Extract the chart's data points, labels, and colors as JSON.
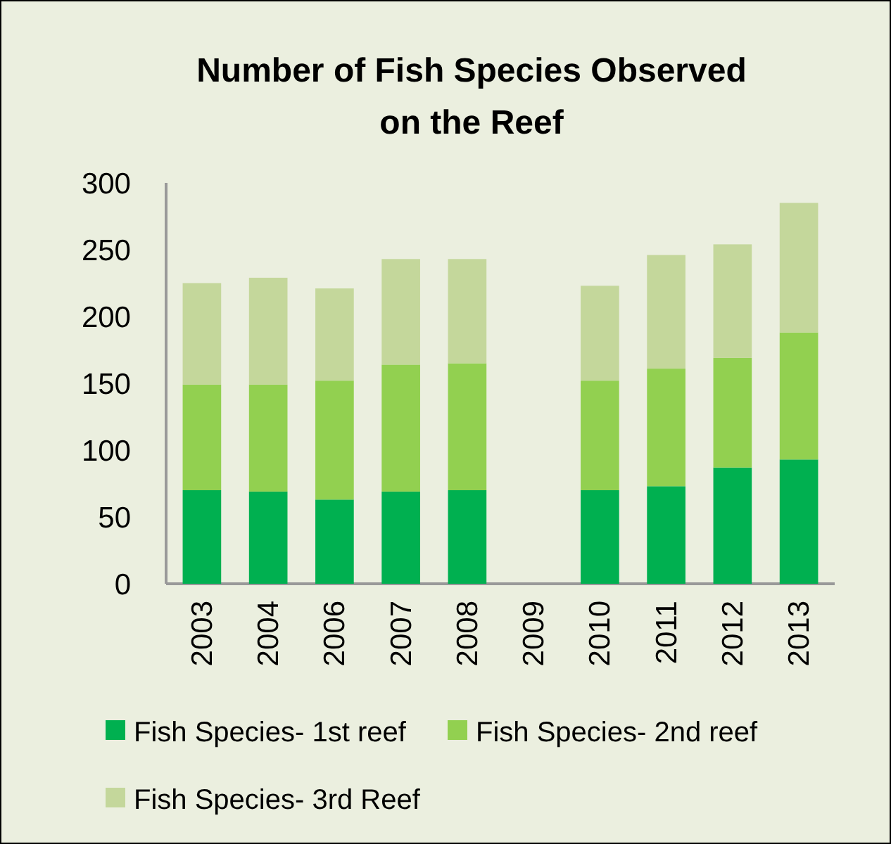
{
  "chart_data": {
    "type": "bar",
    "title": "Number of Fish Species Observed on the Reef",
    "categories": [
      "2003",
      "2004",
      "2006",
      "2007",
      "2008",
      "2009",
      "2010",
      "2011",
      "2012",
      "2013"
    ],
    "stacked": true,
    "series": [
      {
        "name": "Fish Species- 1st reef",
        "color": "#00b050",
        "values": [
          70,
          69,
          63,
          69,
          70,
          0,
          70,
          73,
          87,
          93
        ]
      },
      {
        "name": "Fish Species- 2nd reef",
        "color": "#92d050",
        "values": [
          79,
          80,
          89,
          95,
          95,
          0,
          82,
          88,
          82,
          95
        ]
      },
      {
        "name": "Fish Species- 3rd Reef",
        "color": "#c4d79b",
        "values": [
          76,
          80,
          69,
          79,
          78,
          0,
          71,
          85,
          85,
          97
        ]
      }
    ],
    "ylim": [
      0,
      300
    ],
    "yticks": [
      0,
      50,
      100,
      150,
      200,
      250,
      300
    ],
    "grid": false,
    "legend": "bottom"
  }
}
